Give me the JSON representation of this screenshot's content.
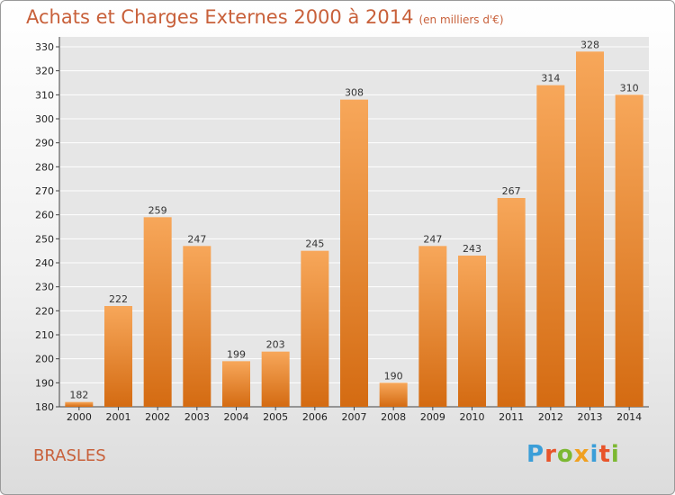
{
  "chart_data": {
    "type": "bar",
    "title": "Achats et Charges Externes 2000 à 2014",
    "subtitle": "(en milliers d'€)",
    "categories": [
      "2000",
      "2001",
      "2002",
      "2003",
      "2004",
      "2005",
      "2006",
      "2007",
      "2008",
      "2009",
      "2010",
      "2011",
      "2012",
      "2013",
      "2014"
    ],
    "values": [
      182,
      222,
      259,
      247,
      199,
      203,
      245,
      308,
      190,
      247,
      243,
      267,
      314,
      328,
      310
    ],
    "ylim": [
      180,
      330
    ],
    "yticks": [
      180,
      190,
      200,
      210,
      220,
      230,
      240,
      250,
      260,
      270,
      280,
      290,
      300,
      310,
      320,
      330
    ],
    "grid": true,
    "bar_color": "#f08c2e",
    "bar_color_light": "#f7a75a",
    "bar_color_dark": "#d46b12"
  },
  "footer": {
    "town": "BRASLES",
    "logo_letters": [
      "P",
      "r",
      "o",
      "x",
      "i",
      "t",
      "i"
    ],
    "logo_colors": [
      "#3b9ed8",
      "#e8542a",
      "#7cb832",
      "#f0a020",
      "#3b9ed8",
      "#e8542a",
      "#7cb832"
    ]
  },
  "colors": {
    "title": "#c8603a",
    "grid": "#ffffff",
    "axis": "#444444"
  }
}
